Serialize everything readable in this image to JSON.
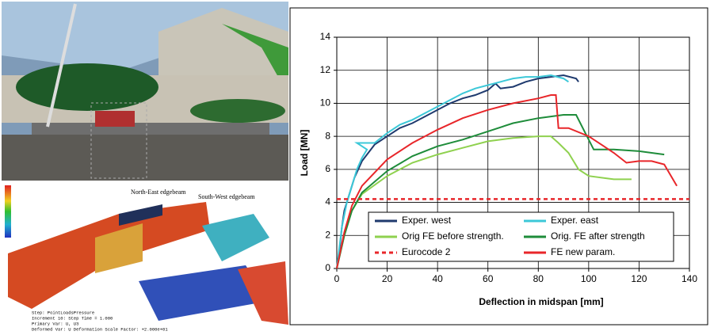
{
  "figure": {
    "fe_labels": [
      "North-East edgebeam",
      "South-West edgebeam"
    ],
    "fe_info": [
      "Step: PointLoadsPressure",
      "Increment    10: Step Time =    1.000",
      "Primary Var: U, U3",
      "Deformed Var: U   Deformation Scale Factor: +2.000e+01"
    ]
  },
  "chart_data": {
    "type": "line",
    "xlabel": "Deflection in midspan [mm]",
    "ylabel": "Load [MN]",
    "xlim": [
      0,
      140
    ],
    "xticks": [
      0,
      20,
      40,
      60,
      80,
      100,
      120,
      140
    ],
    "ylim": [
      0,
      14
    ],
    "yticks": [
      0,
      2,
      4,
      6,
      8,
      10,
      12,
      14
    ],
    "grid": true,
    "legend": "bottom",
    "series": [
      {
        "name": "Exper. west",
        "color": "#1f3a6e",
        "style": "solid",
        "x": [
          0,
          1,
          2,
          3,
          5,
          7,
          10,
          15,
          20,
          25,
          30,
          35,
          40,
          45,
          50,
          55,
          60,
          63,
          65,
          70,
          75,
          80,
          85,
          90,
          95,
          96
        ],
        "values": [
          0,
          1,
          2.5,
          3.5,
          4.5,
          5.5,
          6.5,
          7.5,
          8,
          8.5,
          8.8,
          9.2,
          9.6,
          10,
          10.3,
          10.5,
          10.8,
          11.2,
          10.9,
          11,
          11.3,
          11.5,
          11.6,
          11.7,
          11.5,
          11.3
        ]
      },
      {
        "name": "Exper. east",
        "color": "#3cc8d8",
        "style": "solid",
        "x": [
          0,
          2,
          4,
          6,
          8,
          10,
          12,
          8,
          15,
          20,
          25,
          30,
          35,
          40,
          45,
          50,
          55,
          60,
          65,
          70,
          75,
          80,
          85,
          90,
          92
        ],
        "values": [
          0,
          2.5,
          4,
          5,
          6,
          6.7,
          7.2,
          7.6,
          7.6,
          8.2,
          8.7,
          9,
          9.4,
          9.8,
          10.2,
          10.6,
          10.9,
          11.1,
          11.3,
          11.5,
          11.6,
          11.6,
          11.7,
          11.5,
          11.3
        ]
      },
      {
        "name": "Orig FE before strength.",
        "color": "#8fd14f",
        "style": "solid",
        "x": [
          0,
          3,
          6,
          10,
          20,
          30,
          40,
          50,
          60,
          70,
          80,
          85,
          88,
          92,
          96,
          100,
          110,
          117
        ],
        "values": [
          0,
          2,
          3.5,
          4.5,
          5.6,
          6.4,
          6.9,
          7.3,
          7.7,
          7.9,
          8,
          8,
          7.6,
          7,
          6,
          5.6,
          5.4,
          5.4
        ]
      },
      {
        "name": "Orig. FE after strength",
        "color": "#1e8c3a",
        "style": "solid",
        "x": [
          0,
          3,
          6,
          10,
          20,
          30,
          40,
          50,
          60,
          70,
          80,
          90,
          95,
          98,
          102,
          110,
          120,
          130
        ],
        "values": [
          0,
          2,
          3.5,
          4.6,
          5.9,
          6.8,
          7.4,
          7.8,
          8.3,
          8.8,
          9.1,
          9.3,
          9.3,
          8.4,
          7.2,
          7.2,
          7.1,
          6.9
        ]
      },
      {
        "name": "Eurocode 2",
        "color": "#e8262a",
        "style": "dashed",
        "x": [
          0,
          140
        ],
        "values": [
          4.2,
          4.2
        ]
      },
      {
        "name": "FE new param.",
        "color": "#e8262a",
        "style": "solid",
        "x": [
          0,
          3,
          6,
          10,
          20,
          30,
          40,
          50,
          60,
          70,
          80,
          85,
          87,
          88,
          92,
          100,
          110,
          115,
          120,
          125,
          130,
          135
        ],
        "values": [
          0,
          2.2,
          3.8,
          5,
          6.6,
          7.6,
          8.4,
          9.1,
          9.6,
          10,
          10.3,
          10.5,
          10.5,
          8.5,
          8.5,
          8,
          7,
          6.4,
          6.5,
          6.5,
          6.3,
          5
        ]
      }
    ]
  }
}
